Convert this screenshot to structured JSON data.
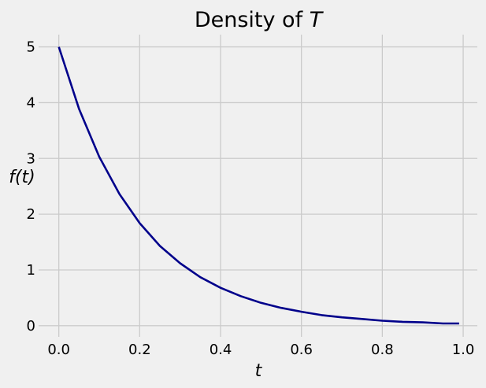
{
  "chart_data": {
    "type": "line",
    "title_text": "Density of ",
    "title_var": "T",
    "xlabel": "t",
    "ylabel": "f(t)",
    "xlim": [
      -0.05,
      1.035
    ],
    "ylim": [
      -0.2,
      5.22
    ],
    "xticks": [
      0.0,
      0.2,
      0.4,
      0.6,
      0.8,
      1.0
    ],
    "xtick_labels": [
      "0.0",
      "0.2",
      "0.4",
      "0.6",
      "0.8",
      "1.0"
    ],
    "yticks": [
      0,
      1,
      2,
      3,
      4,
      5
    ],
    "ytick_labels": [
      "0",
      "1",
      "2",
      "3",
      "4",
      "5"
    ],
    "grid": true,
    "series": [
      {
        "color": "#00008b",
        "x": [
          0.0,
          0.05,
          0.1,
          0.15,
          0.2,
          0.25,
          0.3,
          0.35,
          0.4,
          0.45,
          0.5,
          0.55,
          0.6,
          0.65,
          0.7,
          0.75,
          0.8,
          0.85,
          0.9,
          0.95,
          0.99
        ],
        "y": [
          5.0,
          3.89,
          3.03,
          2.36,
          1.84,
          1.43,
          1.12,
          0.87,
          0.68,
          0.53,
          0.41,
          0.32,
          0.25,
          0.19,
          0.15,
          0.12,
          0.09,
          0.07,
          0.06,
          0.04,
          0.04
        ]
      }
    ]
  }
}
